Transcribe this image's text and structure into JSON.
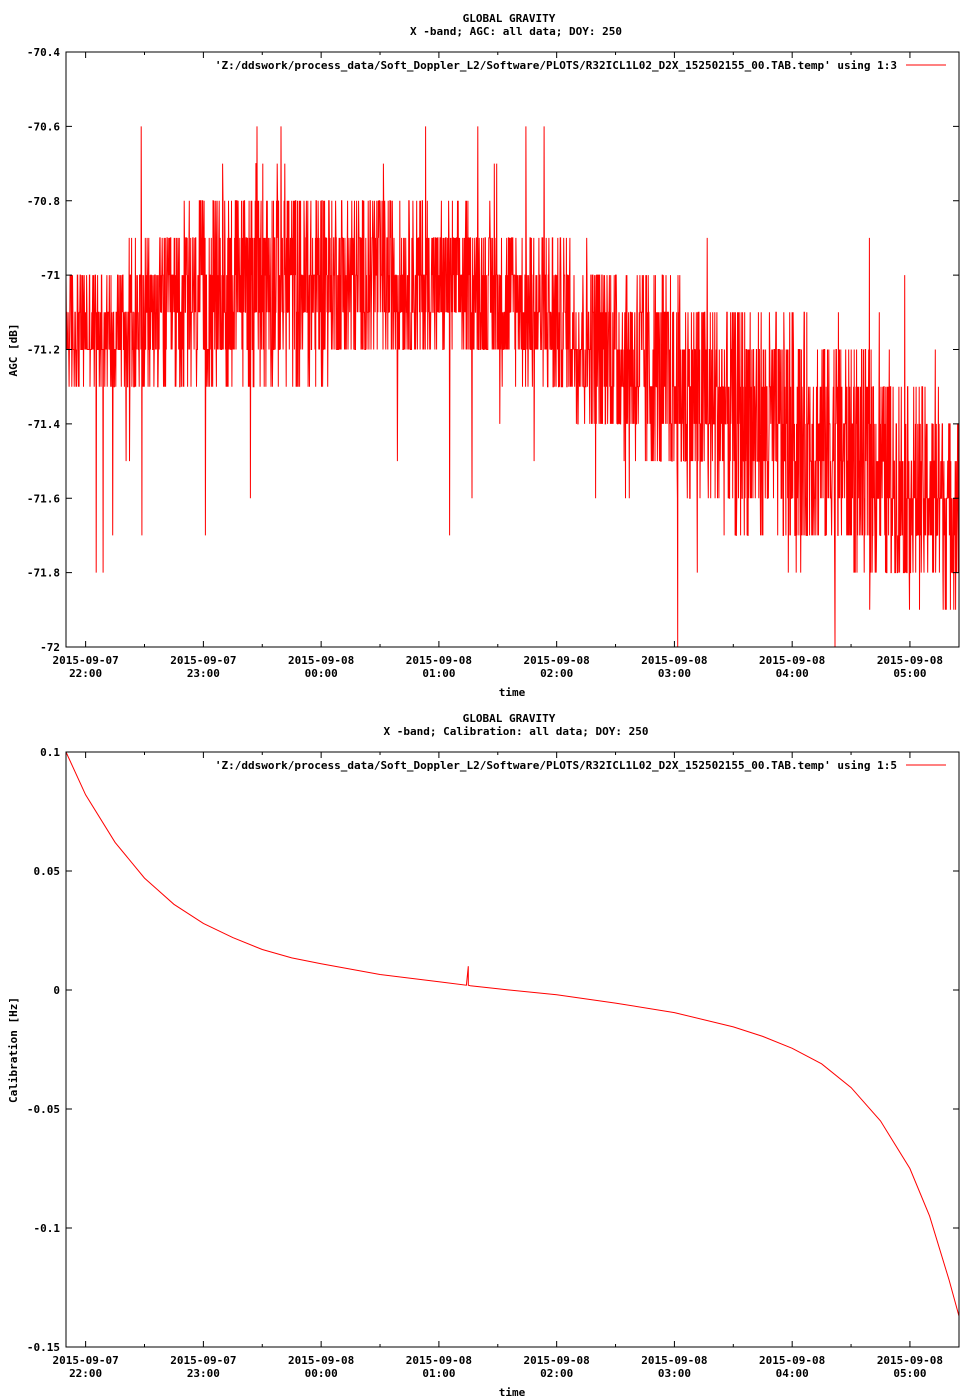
{
  "chart_data": [
    {
      "type": "line",
      "title": "GLOBAL GRAVITY",
      "subtitle": "X -band; AGC: all data; DOY: 250",
      "xlabel": "time",
      "ylabel": "AGC [dB]",
      "ylim": [
        -72,
        -70.4
      ],
      "yticks": [
        -70.4,
        -70.6,
        -70.8,
        -71,
        -71.2,
        -71.4,
        -71.6,
        -71.8,
        -72
      ],
      "ytick_labels": [
        "-70.4",
        "-70.6",
        "-70.8",
        "-71",
        "-71.2",
        "-71.4",
        "-71.6",
        "-71.8",
        "-72"
      ],
      "xlim": [
        "2015-09-07 21:50",
        "2015-09-08 05:25"
      ],
      "xticks": [
        "2015-09-07 22:00",
        "2015-09-07 23:00",
        "2015-09-08 00:00",
        "2015-09-08 01:00",
        "2015-09-08 02:00",
        "2015-09-08 03:00",
        "2015-09-08 04:00",
        "2015-09-08 05:00"
      ],
      "xtick_dates": [
        "2015-09-07",
        "2015-09-07",
        "2015-09-08",
        "2015-09-08",
        "2015-09-08",
        "2015-09-08",
        "2015-09-08",
        "2015-09-08"
      ],
      "xtick_times": [
        "22:00",
        "23:00",
        "00:00",
        "01:00",
        "02:00",
        "03:00",
        "04:00",
        "05:00"
      ],
      "legend_position": "top-right",
      "series": [
        {
          "name": "'Z:/ddswork/process_data/Soft_Doppler_L2/Software/PLOTS/R32ICL1L02_D2X_152502155_00.TAB.temp' using 1:3",
          "color": "#ff0000",
          "style": "noisy",
          "x": [
            "2015-09-07 21:50",
            "2015-09-07 22:30",
            "2015-09-07 23:00",
            "2015-09-07 23:30",
            "2015-09-08 00:00",
            "2015-09-08 00:30",
            "2015-09-08 01:00",
            "2015-09-08 01:30",
            "2015-09-08 02:00",
            "2015-09-08 02:30",
            "2015-09-08 03:00",
            "2015-09-08 03:30",
            "2015-09-08 04:00",
            "2015-09-08 04:30",
            "2015-09-08 05:00",
            "2015-09-08 05:25"
          ],
          "center": [
            -71.15,
            -71.12,
            -71.05,
            -71.0,
            -71.02,
            -71.0,
            -71.02,
            -71.05,
            -71.12,
            -71.2,
            -71.3,
            -71.38,
            -71.42,
            -71.47,
            -71.58,
            -71.62
          ],
          "spread": [
            0.15,
            0.2,
            0.25,
            0.3,
            0.25,
            0.22,
            0.2,
            0.2,
            0.22,
            0.25,
            0.28,
            0.3,
            0.3,
            0.3,
            0.28,
            0.25
          ],
          "y_range": [
            -72,
            -70.6
          ]
        }
      ]
    },
    {
      "type": "line",
      "title": "GLOBAL GRAVITY",
      "subtitle": "X -band; Calibration: all data; DOY: 250",
      "xlabel": "time",
      "ylabel": "Calibration [Hz]",
      "ylim": [
        -0.15,
        0.1
      ],
      "yticks": [
        0.1,
        0.05,
        0,
        -0.05,
        -0.1,
        -0.15
      ],
      "ytick_labels": [
        "0.1",
        "0.05",
        "0",
        "-0.05",
        "-0.1",
        "-0.15"
      ],
      "xlim": [
        "2015-09-07 21:50",
        "2015-09-08 05:25"
      ],
      "xticks": [
        "2015-09-07 22:00",
        "2015-09-07 23:00",
        "2015-09-08 00:00",
        "2015-09-08 01:00",
        "2015-09-08 02:00",
        "2015-09-08 03:00",
        "2015-09-08 04:00",
        "2015-09-08 05:00"
      ],
      "xtick_dates": [
        "2015-09-07",
        "2015-09-07",
        "2015-09-08",
        "2015-09-08",
        "2015-09-08",
        "2015-09-08",
        "2015-09-08",
        "2015-09-08"
      ],
      "xtick_times": [
        "22:00",
        "23:00",
        "00:00",
        "01:00",
        "02:00",
        "03:00",
        "04:00",
        "05:00"
      ],
      "legend_position": "top-right",
      "series": [
        {
          "name": "'Z:/ddswork/process_data/Soft_Doppler_L2/Software/PLOTS/R32ICL1L02_D2X_152502155_00.TAB.temp' using 1:5",
          "color": "#ff0000",
          "style": "smooth",
          "x": [
            "2015-09-07 21:50",
            "2015-09-07 22:00",
            "2015-09-07 22:15",
            "2015-09-07 22:30",
            "2015-09-07 22:45",
            "2015-09-07 23:00",
            "2015-09-07 23:15",
            "2015-09-07 23:30",
            "2015-09-07 23:45",
            "2015-09-08 00:00",
            "2015-09-08 00:30",
            "2015-09-08 01:00",
            "2015-09-08 01:14",
            "2015-09-08 01:15",
            "2015-09-08 01:15",
            "2015-09-08 01:16",
            "2015-09-08 01:30",
            "2015-09-08 02:00",
            "2015-09-08 02:30",
            "2015-09-08 03:00",
            "2015-09-08 03:30",
            "2015-09-08 03:45",
            "2015-09-08 04:00",
            "2015-09-08 04:15",
            "2015-09-08 04:30",
            "2015-09-08 04:45",
            "2015-09-08 05:00",
            "2015-09-08 05:10",
            "2015-09-08 05:20",
            "2015-09-08 05:25"
          ],
          "y": [
            0.1,
            0.082,
            0.062,
            0.047,
            0.036,
            0.028,
            0.022,
            0.017,
            0.0135,
            0.011,
            0.0065,
            0.0035,
            0.002,
            0.01,
            0.002,
            0.0018,
            0.0005,
            -0.002,
            -0.0055,
            -0.0095,
            -0.0155,
            -0.0195,
            -0.0245,
            -0.031,
            -0.041,
            -0.055,
            -0.075,
            -0.095,
            -0.122,
            -0.137
          ]
        }
      ]
    }
  ]
}
